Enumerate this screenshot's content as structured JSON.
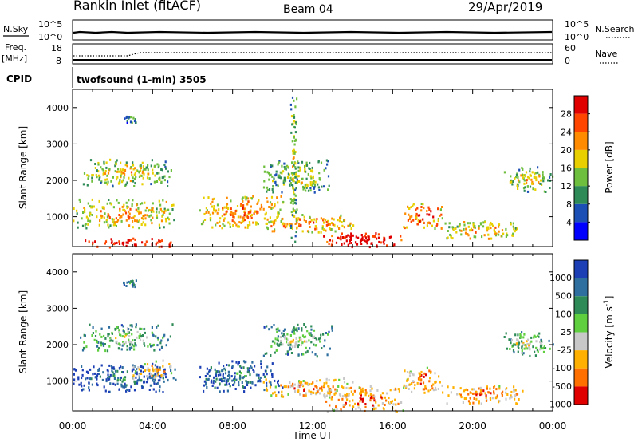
{
  "header": {
    "radar": "Rankin Inlet (fitACF)",
    "beam": "Beam 04",
    "date": "29/Apr/2019"
  },
  "params": {
    "nsky_label": "N.Sky",
    "nsky_ticks": [
      "10^5",
      "10^0"
    ],
    "nsearch_label": "N.Search",
    "nsearch_ticks": [
      "10^5",
      "10^0"
    ],
    "freq_label": "Freq.",
    "freq_unit": "[MHz]",
    "freq_ticks": [
      "18",
      "8"
    ],
    "nave_label": "Nave",
    "nave_ticks": [
      "60",
      "0"
    ],
    "cpid_label": "CPID",
    "cpid_value": "twofsound (1-min) 3505"
  },
  "chart_data": [
    {
      "type": "heatmap",
      "title": "Power",
      "xlabel": "Time UT",
      "ylabel": "Slant Range [km]",
      "x_ticks": [
        "00:00",
        "04:00",
        "08:00",
        "12:00",
        "16:00",
        "20:00",
        "00:00"
      ],
      "x_range_hours": [
        0,
        24
      ],
      "y_ticks": [
        1000,
        2000,
        3000,
        4000
      ],
      "ylim": [
        180,
        4500
      ],
      "colorbar": {
        "label": "Power [dB]",
        "ticks": [
          "4",
          "8",
          "12",
          "16",
          "20",
          "24",
          "28"
        ],
        "colors": [
          "#0000ff",
          "#1c4fb5",
          "#2e8b57",
          "#6fbf3f",
          "#e8d000",
          "#ff8c00",
          "#ff4500",
          "#e00000"
        ],
        "range": [
          0,
          32
        ]
      },
      "regions": [
        {
          "t": [
            0.3,
            5.0
          ],
          "r": [
            1850,
            2600
          ],
          "level": 0.45
        },
        {
          "t": [
            2.5,
            3.2
          ],
          "r": [
            3600,
            3800
          ],
          "level": 0.3
        },
        {
          "t": [
            0.0,
            5.2
          ],
          "r": [
            700,
            1500
          ],
          "level": 0.55
        },
        {
          "t": [
            0.5,
            5.0
          ],
          "r": [
            180,
            450
          ],
          "level": 0.9
        },
        {
          "t": [
            6.3,
            10.5
          ],
          "r": [
            700,
            1600
          ],
          "level": 0.6
        },
        {
          "t": [
            9.5,
            13.0
          ],
          "r": [
            1700,
            2600
          ],
          "level": 0.4
        },
        {
          "t": [
            9.5,
            14.0
          ],
          "r": [
            600,
            1100
          ],
          "level": 0.65
        },
        {
          "t": [
            12.5,
            16.5
          ],
          "r": [
            180,
            600
          ],
          "level": 0.95
        },
        {
          "t": [
            16.5,
            18.5
          ],
          "r": [
            700,
            1400
          ],
          "level": 0.7
        },
        {
          "t": [
            18.5,
            22.5
          ],
          "r": [
            400,
            900
          ],
          "level": 0.55
        },
        {
          "t": [
            21.5,
            24.0
          ],
          "r": [
            1700,
            2400
          ],
          "level": 0.45
        },
        {
          "t": [
            10.8,
            11.2
          ],
          "r": [
            300,
            4500
          ],
          "level": 0.4
        }
      ]
    },
    {
      "type": "heatmap",
      "title": "Velocity",
      "xlabel": "Time UT",
      "ylabel": "Slant Range [km]",
      "x_ticks": [
        "00:00",
        "04:00",
        "08:00",
        "12:00",
        "16:00",
        "20:00",
        "00:00"
      ],
      "x_range_hours": [
        0,
        24
      ],
      "y_ticks": [
        1000,
        2000,
        3000,
        4000
      ],
      "ylim": [
        180,
        4500
      ],
      "colorbar": {
        "label": "Velocity [m s^-1]",
        "ticks": [
          "1000",
          "500",
          "100",
          "25",
          "-25",
          "-100",
          "-500",
          "-1000"
        ],
        "colors": [
          "#1c3fb5",
          "#2e6fa0",
          "#2e8b57",
          "#5fcf3f",
          "#c8c8c8",
          "#ffb000",
          "#ff7000",
          "#e00000"
        ]
      },
      "regions": [
        {
          "t": [
            0.3,
            5.0
          ],
          "r": [
            1850,
            2600
          ],
          "level": 0.35
        },
        {
          "t": [
            2.5,
            3.2
          ],
          "r": [
            3600,
            3800
          ],
          "level": 0.2
        },
        {
          "t": [
            0.0,
            5.2
          ],
          "r": [
            700,
            1500
          ],
          "level": 0.1
        },
        {
          "t": [
            3.0,
            5.0
          ],
          "r": [
            1100,
            1600
          ],
          "level": 0.6
        },
        {
          "t": [
            6.3,
            10.5
          ],
          "r": [
            700,
            1600
          ],
          "level": 0.15
        },
        {
          "t": [
            9.5,
            13.0
          ],
          "r": [
            1700,
            2600
          ],
          "level": 0.35
        },
        {
          "t": [
            9.5,
            14.0
          ],
          "r": [
            600,
            1100
          ],
          "level": 0.65
        },
        {
          "t": [
            12.5,
            16.5
          ],
          "r": [
            180,
            900
          ],
          "level": 0.7
        },
        {
          "t": [
            16.5,
            18.5
          ],
          "r": [
            700,
            1400
          ],
          "level": 0.7
        },
        {
          "t": [
            18.5,
            22.5
          ],
          "r": [
            400,
            900
          ],
          "level": 0.7
        },
        {
          "t": [
            21.5,
            24.0
          ],
          "r": [
            1700,
            2400
          ],
          "level": 0.4
        }
      ]
    }
  ]
}
